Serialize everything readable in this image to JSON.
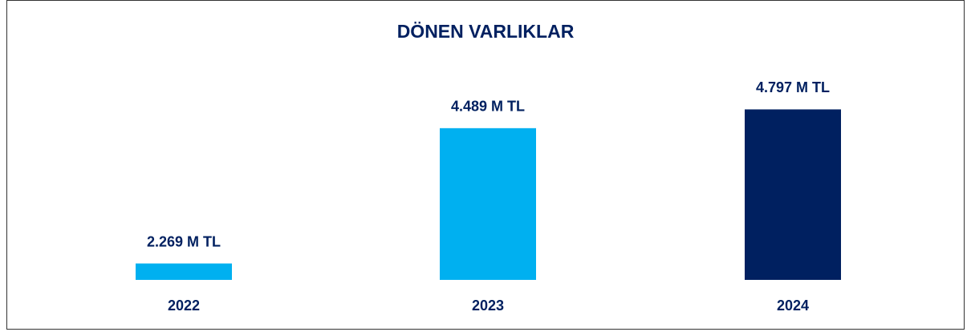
{
  "chart_data": {
    "type": "bar",
    "title": "DÖNEN VARLIKLAR",
    "categories": [
      "2022",
      "2023",
      "2024"
    ],
    "values": [
      2269,
      4489,
      4797
    ],
    "value_labels": [
      "2.269 M TL",
      "4.489 M TL",
      "4.797 M TL"
    ],
    "colors": [
      "#00b0f0",
      "#00b0f0",
      "#002060"
    ],
    "ylim": [
      2000,
      5000
    ]
  }
}
